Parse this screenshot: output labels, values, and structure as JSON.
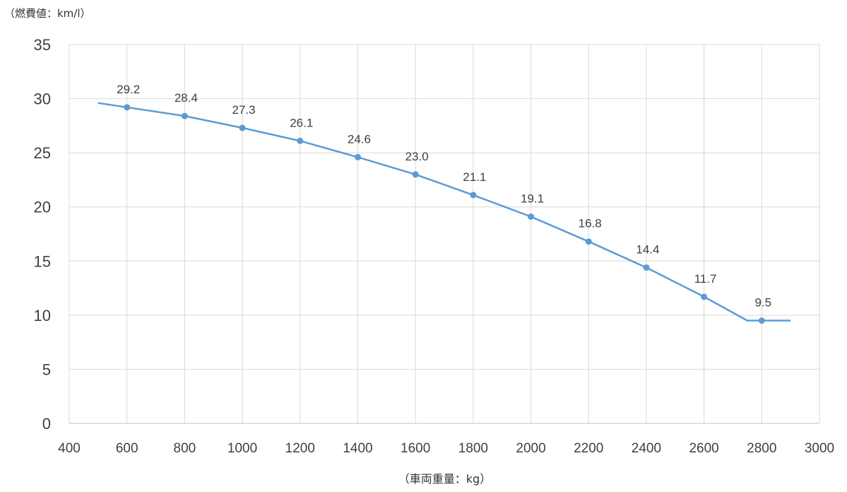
{
  "chart_data": {
    "type": "line",
    "title": "",
    "ylabel": "（燃費値：km/l）",
    "xlabel": "（車両重量：kg）",
    "xlim": [
      400,
      3000
    ],
    "ylim": [
      0,
      35
    ],
    "x_ticks": [
      400,
      600,
      800,
      1000,
      1200,
      1400,
      1600,
      1800,
      2000,
      2200,
      2400,
      2600,
      2800,
      3000
    ],
    "y_ticks": [
      0,
      5,
      10,
      15,
      20,
      25,
      30,
      35
    ],
    "grid": true,
    "series": [
      {
        "color": "#5b9bd5",
        "points": [
          {
            "x": 600,
            "y": 29.2,
            "label": "29.2"
          },
          {
            "x": 800,
            "y": 28.4,
            "label": "28.4"
          },
          {
            "x": 1000,
            "y": 27.3,
            "label": "27.3"
          },
          {
            "x": 1200,
            "y": 26.1,
            "label": "26.1"
          },
          {
            "x": 1400,
            "y": 24.6,
            "label": "24.6"
          },
          {
            "x": 1600,
            "y": 23.0,
            "label": "23.0"
          },
          {
            "x": 1800,
            "y": 21.1,
            "label": "21.1"
          },
          {
            "x": 2000,
            "y": 19.1,
            "label": "19.1"
          },
          {
            "x": 2200,
            "y": 16.8,
            "label": "16.8"
          },
          {
            "x": 2400,
            "y": 14.4,
            "label": "14.4"
          },
          {
            "x": 2600,
            "y": 11.7,
            "label": "11.7"
          },
          {
            "x": 2800,
            "y": 9.5,
            "label": "9.5"
          }
        ],
        "curve": [
          {
            "x": 500,
            "y": 29.6
          },
          {
            "x": 600,
            "y": 29.2
          },
          {
            "x": 800,
            "y": 28.4
          },
          {
            "x": 1000,
            "y": 27.3
          },
          {
            "x": 1200,
            "y": 26.1
          },
          {
            "x": 1400,
            "y": 24.6
          },
          {
            "x": 1600,
            "y": 23.0
          },
          {
            "x": 1800,
            "y": 21.1
          },
          {
            "x": 2000,
            "y": 19.1
          },
          {
            "x": 2200,
            "y": 16.8
          },
          {
            "x": 2400,
            "y": 14.4
          },
          {
            "x": 2600,
            "y": 11.7
          },
          {
            "x": 2750,
            "y": 9.5
          },
          {
            "x": 2900,
            "y": 9.5
          }
        ]
      }
    ]
  }
}
